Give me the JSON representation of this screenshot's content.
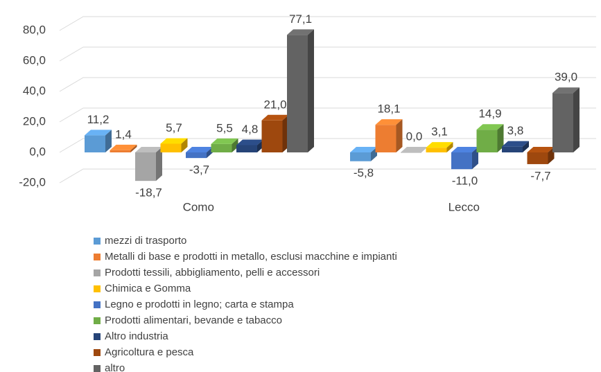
{
  "chart_data": {
    "type": "bar3d",
    "categories": [
      "Como",
      "Lecco"
    ],
    "ylim": [
      -20,
      80
    ],
    "yticks": [
      {
        "value": -20,
        "label": "-20,0"
      },
      {
        "value": 0,
        "label": "0,0"
      },
      {
        "value": 20,
        "label": "20,0"
      },
      {
        "value": 40,
        "label": "40,0"
      },
      {
        "value": 60,
        "label": "60,0"
      },
      {
        "value": 80,
        "label": "80,0"
      }
    ],
    "grid": true,
    "legend": "bottom",
    "series": [
      {
        "name": "mezzi di trasporto",
        "color": "#5b9bd5",
        "values": [
          11.2,
          -5.8
        ],
        "value_labels": [
          "11,2",
          "-5,8"
        ]
      },
      {
        "name": "Metalli di base e prodotti in metallo, esclusi macchine e impianti",
        "color": "#ed7d31",
        "values": [
          1.4,
          18.1
        ],
        "value_labels": [
          "1,4",
          "18,1"
        ]
      },
      {
        "name": "Prodotti tessili, abbigliamento, pelli e accessori",
        "color": "#a5a5a5",
        "values": [
          -18.7,
          0.0
        ],
        "value_labels": [
          "-18,7",
          "0,0"
        ]
      },
      {
        "name": "Chimica e Gomma",
        "color": "#ffc000",
        "values": [
          5.7,
          3.1
        ],
        "value_labels": [
          "5,7",
          "3,1"
        ]
      },
      {
        "name": "Legno e prodotti in legno; carta e stampa",
        "color": "#4472c4",
        "values": [
          -3.7,
          -11.0
        ],
        "value_labels": [
          "-3,7",
          "-11,0"
        ]
      },
      {
        "name": "Prodotti alimentari, bevande e tabacco",
        "color": "#70ad47",
        "values": [
          5.5,
          14.9
        ],
        "value_labels": [
          "5,5",
          "14,9"
        ]
      },
      {
        "name": "Altro industria",
        "color": "#264478",
        "values": [
          4.8,
          3.8
        ],
        "value_labels": [
          "4,8",
          "3,8"
        ]
      },
      {
        "name": "Agricoltura e pesca",
        "color": "#9e480e",
        "values": [
          21.0,
          -7.7
        ],
        "value_labels": [
          "21,0",
          "-7,7"
        ]
      },
      {
        "name": "altro",
        "color": "#636363",
        "values": [
          77.1,
          39.0
        ],
        "value_labels": [
          "77,1",
          "39,0"
        ]
      }
    ]
  }
}
